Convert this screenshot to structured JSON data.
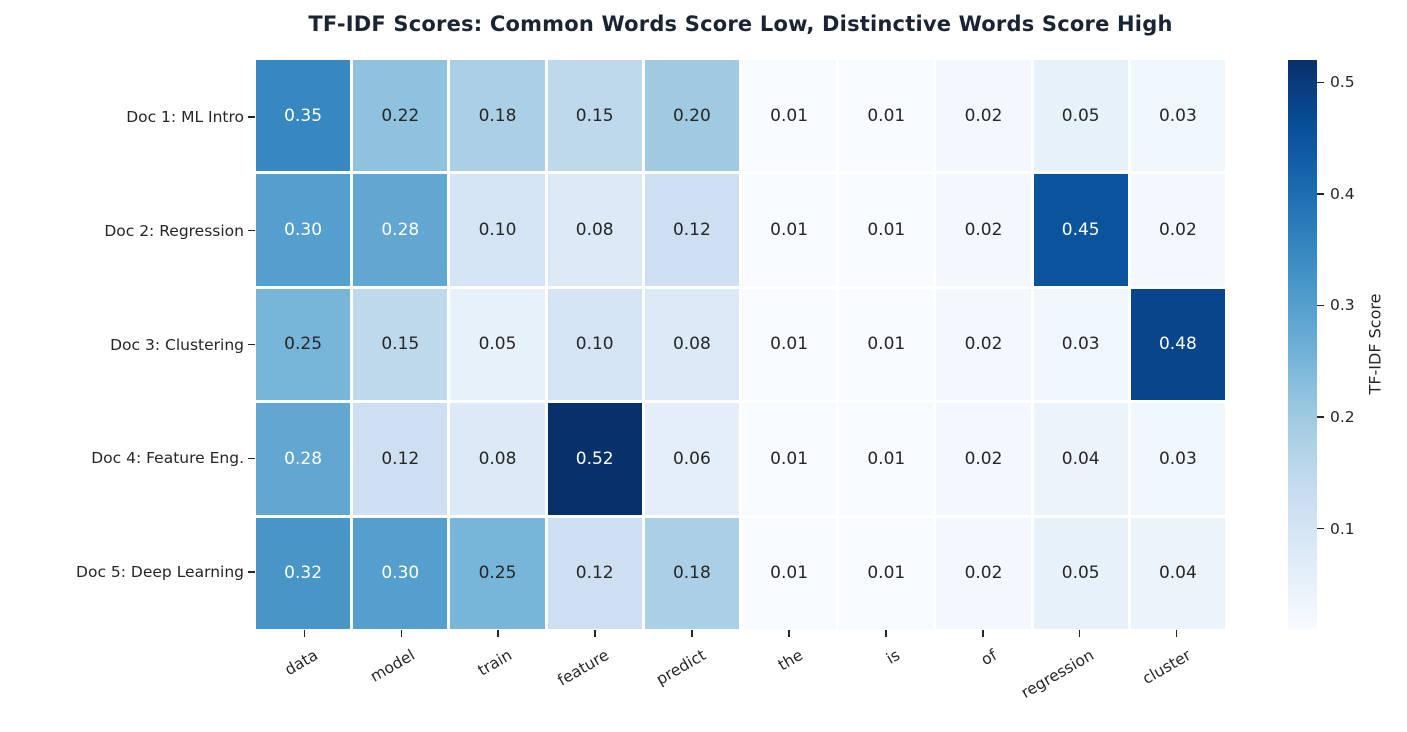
{
  "chart_data": {
    "type": "heatmap",
    "title": "TF-IDF Scores: Common Words Score Low, Distinctive Words Score High",
    "title_color": "#1a2433",
    "rows": [
      "Doc 1: ML Intro",
      "Doc 2: Regression",
      "Doc 3: Clustering",
      "Doc 4: Feature Eng.",
      "Doc 5: Deep Learning"
    ],
    "columns": [
      "data",
      "model",
      "train",
      "feature",
      "predict",
      "the",
      "is",
      "of",
      "regression",
      "cluster"
    ],
    "values": [
      [
        0.35,
        0.22,
        0.18,
        0.15,
        0.2,
        0.01,
        0.01,
        0.02,
        0.05,
        0.03
      ],
      [
        0.3,
        0.28,
        0.1,
        0.08,
        0.12,
        0.01,
        0.01,
        0.02,
        0.45,
        0.02
      ],
      [
        0.25,
        0.15,
        0.05,
        0.1,
        0.08,
        0.01,
        0.01,
        0.02,
        0.03,
        0.48
      ],
      [
        0.28,
        0.12,
        0.08,
        0.52,
        0.06,
        0.01,
        0.01,
        0.02,
        0.04,
        0.03
      ],
      [
        0.32,
        0.3,
        0.25,
        0.12,
        0.18,
        0.01,
        0.01,
        0.02,
        0.05,
        0.04
      ]
    ],
    "value_decimals": 2,
    "colormap": "Blues",
    "vmin": 0.01,
    "vmax": 0.52,
    "cell_line_color": "#ffffff",
    "annotation_dark_text": "#262626",
    "annotation_light_text": "#ffffff",
    "colorbar": {
      "label": "TF-IDF Score",
      "ticks": [
        0.1,
        0.2,
        0.3,
        0.4,
        0.5
      ],
      "position": "right"
    },
    "x_tick_rotation_deg": 30,
    "grid": false,
    "legend_position": "none"
  }
}
